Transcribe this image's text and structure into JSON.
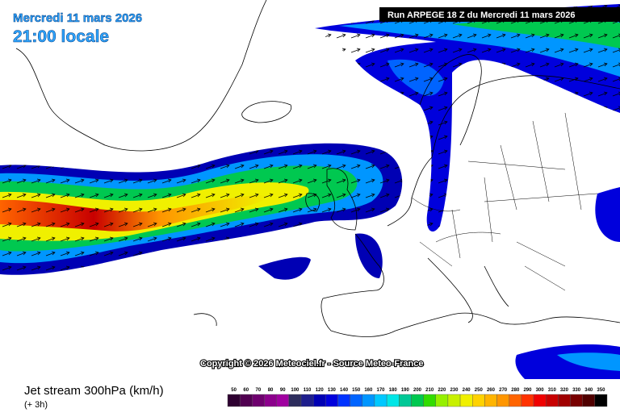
{
  "header": {
    "date": "Mercredi 11 mars 2026",
    "time": "21:00 locale",
    "run": "Run ARPEGE 18 Z du Mercredi 11 mars 2026"
  },
  "copyright": "Copyright © 2026 Meteociel.fr - Source Meteo-France",
  "footer": {
    "title": "Jet stream 300hPa (km/h)",
    "lead": "(+ 3h)"
  },
  "legend": {
    "items": [
      {
        "value": 50,
        "color": "#2d0030"
      },
      {
        "value": 60,
        "color": "#500050"
      },
      {
        "value": 70,
        "color": "#6e006e"
      },
      {
        "value": 80,
        "color": "#8c008c"
      },
      {
        "value": 90,
        "color": "#a000a0"
      },
      {
        "value": 100,
        "color": "#2c2c5c"
      },
      {
        "value": 110,
        "color": "#1e1e8c"
      },
      {
        "value": 120,
        "color": "#0000b4"
      },
      {
        "value": 130,
        "color": "#0000dc"
      },
      {
        "value": 140,
        "color": "#0032ff"
      },
      {
        "value": 150,
        "color": "#0064ff"
      },
      {
        "value": 160,
        "color": "#0096ff"
      },
      {
        "value": 170,
        "color": "#00c8ff"
      },
      {
        "value": 180,
        "color": "#00e6e6"
      },
      {
        "value": 190,
        "color": "#00c896"
      },
      {
        "value": 200,
        "color": "#00c850"
      },
      {
        "value": 210,
        "color": "#32dc00"
      },
      {
        "value": 220,
        "color": "#96f000"
      },
      {
        "value": 230,
        "color": "#c8f000"
      },
      {
        "value": 240,
        "color": "#f0f000"
      },
      {
        "value": 250,
        "color": "#ffd200"
      },
      {
        "value": 260,
        "color": "#ffb400"
      },
      {
        "value": 270,
        "color": "#ff9600"
      },
      {
        "value": 280,
        "color": "#ff6400"
      },
      {
        "value": 290,
        "color": "#ff3200"
      },
      {
        "value": 300,
        "color": "#f00000"
      },
      {
        "value": 310,
        "color": "#c80000"
      },
      {
        "value": 320,
        "color": "#a00000"
      },
      {
        "value": 330,
        "color": "#780000"
      },
      {
        "value": 340,
        "color": "#500000"
      },
      {
        "value": 350,
        "color": "#000000"
      }
    ]
  }
}
